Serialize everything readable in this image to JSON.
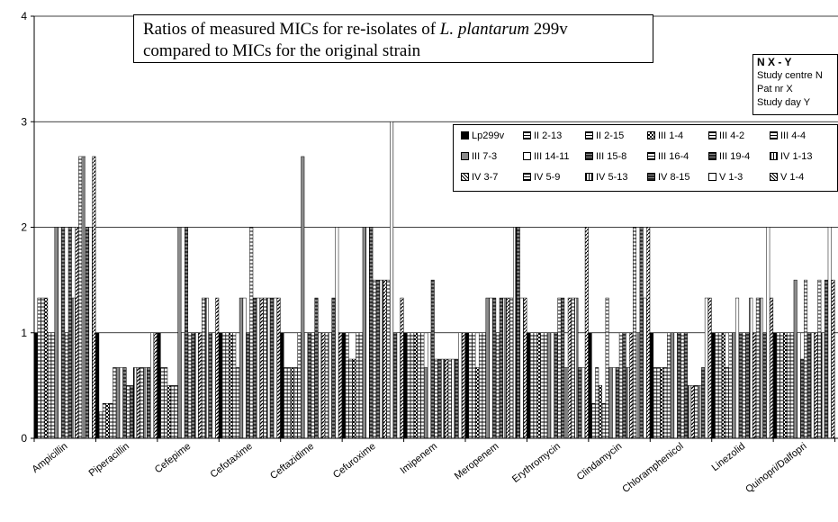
{
  "chart_data": {
    "type": "bar",
    "title": "Ratios of measured MICs for re-isolates of L. plantarum 299v compared to MICs for the original strain",
    "title_parts": {
      "before": "Ratios of measured MICs for re-isolates of ",
      "italic": "L. plantarum",
      "after": " 299v",
      "line2": "compared to MICs for the original strain"
    },
    "ylim": [
      0,
      4
    ],
    "yticks": [
      "0",
      "1",
      "2",
      "3",
      "4"
    ],
    "grid": "horizontal",
    "legend_placement": "top-right",
    "categories": [
      "Ampicillin",
      "Piperacillin",
      "Cefepime",
      "Cefotaxime",
      "Ceftazidime",
      "Cefuroxime",
      "Imipenem",
      "Meropenem",
      "Erythromycin",
      "Clindamycin",
      "Chloramphenicol",
      "Linezolid",
      "Quinopri/Dalfopri"
    ],
    "series": [
      {
        "name": "Lp299v",
        "values": [
          1,
          1,
          1,
          1,
          1,
          1,
          1,
          1,
          1,
          1,
          1,
          1,
          1
        ]
      },
      {
        "name": "II 2-13",
        "values": [
          1.33,
          0.25,
          0.67,
          1,
          0.67,
          1,
          1,
          1,
          1,
          0.33,
          0.67,
          1,
          1
        ]
      },
      {
        "name": "II 2-15",
        "values": [
          1.33,
          0.33,
          0.67,
          1,
          0.67,
          0.75,
          1,
          1,
          1,
          0.67,
          0.67,
          1,
          1
        ]
      },
      {
        "name": "III 1-4",
        "values": [
          1.33,
          0.33,
          0.5,
          1,
          0.67,
          0.75,
          1,
          0.67,
          1,
          0.5,
          0.67,
          1,
          1
        ]
      },
      {
        "name": "III 4-2",
        "values": [
          1,
          0.33,
          0.5,
          1,
          0.67,
          1,
          1,
          1,
          1,
          0.33,
          0.67,
          0.67,
          1
        ]
      },
      {
        "name": "III 4-4",
        "values": [
          1,
          0.67,
          0.5,
          0.67,
          1,
          1,
          1,
          1,
          1,
          1.33,
          1,
          1,
          1
        ]
      },
      {
        "name": "III 7-3",
        "values": [
          2,
          0.67,
          2,
          1.33,
          2.67,
          2,
          0.67,
          1.33,
          1,
          0.67,
          1,
          1,
          1.5
        ]
      },
      {
        "name": "III 14-11",
        "values": [
          2,
          0.67,
          1,
          1.33,
          1,
          2,
          1,
          1.33,
          1,
          0.67,
          1,
          1.33,
          1
        ]
      },
      {
        "name": "III 15-8",
        "values": [
          2,
          0.67,
          2,
          1,
          1,
          2,
          1.5,
          1.33,
          1,
          0.67,
          1,
          1,
          0.75
        ]
      },
      {
        "name": "III 16-4",
        "values": [
          1,
          0.5,
          1,
          2,
          1,
          1.5,
          0.75,
          1,
          1.33,
          1,
          1,
          1,
          1.5
        ]
      },
      {
        "name": "III 19-4",
        "values": [
          2,
          0.5,
          1,
          1.33,
          1.33,
          1.5,
          0.75,
          1.33,
          1.33,
          1,
          1,
          1,
          1
        ]
      },
      {
        "name": "IV 1-13",
        "values": [
          1.33,
          0.67,
          1,
          1.33,
          1,
          1.5,
          0.75,
          1.33,
          0.67,
          0.67,
          0.5,
          1.33,
          1
        ]
      },
      {
        "name": "IV 3-7",
        "values": [
          2,
          0.67,
          1,
          1.33,
          1,
          1.5,
          0.75,
          1.33,
          1.33,
          1,
          0.5,
          1,
          1
        ]
      },
      {
        "name": "IV 5-9",
        "values": [
          2.67,
          0.67,
          1.33,
          1.33,
          1,
          1.5,
          0.75,
          1.33,
          1.33,
          2,
          0.5,
          1.33,
          1.5
        ]
      },
      {
        "name": "IV 5-13",
        "values": [
          2.67,
          0.67,
          1.33,
          1.33,
          1,
          3,
          0.75,
          2,
          1.33,
          1,
          0.5,
          1.33,
          1
        ]
      },
      {
        "name": "IV 8-15",
        "values": [
          2,
          0.67,
          1,
          1.33,
          1.33,
          1,
          0.75,
          2,
          0.67,
          2,
          0.67,
          1,
          1.5
        ]
      },
      {
        "name": "V 1-3",
        "values": [
          2,
          1,
          1,
          1.33,
          2,
          1,
          1,
          1.33,
          0.67,
          1.33,
          1.33,
          2,
          2
        ]
      },
      {
        "name": "V 1-4",
        "values": [
          2.67,
          1,
          1.33,
          1.33,
          1,
          1.33,
          1,
          1.33,
          2,
          2,
          1.33,
          1.33,
          1.5
        ]
      }
    ],
    "legend_rows": [
      [
        "Lp299v",
        "II 2-13",
        "II 2-15",
        "III 1-4",
        "III 4-2",
        "III 4-4"
      ],
      [
        "III 7-3",
        "III 14-11",
        "III 15-8",
        "III 16-4",
        "III 19-4",
        "IV 1-13"
      ],
      [
        "IV 3-7",
        "IV 5-9",
        "IV 5-13",
        "IV 8-15",
        "V 1-3",
        "V 1-4"
      ]
    ],
    "series_patterns": [
      "solid",
      "hlines",
      "hlines",
      "checker",
      "hlines",
      "hlines",
      "gray",
      "white",
      "dark",
      "hlines",
      "dark",
      "vlines",
      "diag",
      "hlines",
      "vlines",
      "dark",
      "white",
      "diag"
    ]
  },
  "key": {
    "head": "N  X - Y",
    "lines": [
      "Study centre N",
      "Pat nr X",
      "Study day Y"
    ]
  }
}
